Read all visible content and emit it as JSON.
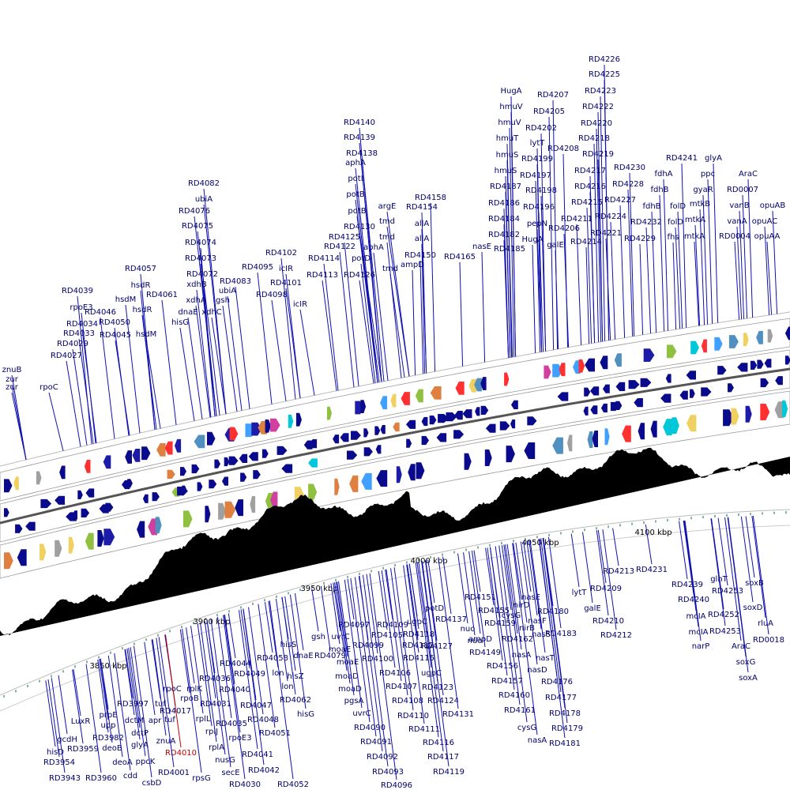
{
  "tick_labels": [
    "3850 kbp",
    "3900 kbp",
    "3950 kbp",
    "4000 kbp",
    "4050 kbp",
    "4100 kbp"
  ],
  "upper_labels": [
    "RD4226",
    "RD4225",
    "RD4223",
    "RD4222",
    "RD4220",
    "RD4218",
    "RD4219",
    "RD4217",
    "RD4216",
    "RD4215",
    "RD4211",
    "RD4214",
    "RD4207",
    "RD4205",
    "RD4202",
    "RD4208",
    "HugA",
    "hmuV",
    "hmuV",
    "hmuT",
    "hmuS",
    "hmuS",
    "RD4187",
    "RD4186",
    "RD4184",
    "RD4182",
    "RD4185",
    "lytT",
    "RD4199",
    "RD4197",
    "RD4198",
    "RD4196",
    "pepN",
    "HugA",
    "galE",
    "RD4206",
    "RD4230",
    "RD4228",
    "RD4227",
    "RD4224",
    "RD4221",
    "RD4232",
    "RD4229",
    "RD4241",
    "fdhA",
    "fdhB",
    "fdhB",
    "folD",
    "folD",
    "fhs",
    "glyA",
    "ppc",
    "gyaR",
    "mtkB",
    "mtkA",
    "mtkA",
    "AraC",
    "RD0007",
    "vanB",
    "vanA",
    "RD0004",
    "opuAB",
    "opuAC",
    "opuAA",
    "nasE",
    "RD4165",
    "RD4158",
    "RD4154",
    "allA",
    "allA",
    "RD4150",
    "ampD",
    "argE",
    "tmd",
    "tmd",
    "aphA",
    "tmd",
    "RD4140",
    "RD4139",
    "RD4138",
    "aphA",
    "potI",
    "potB",
    "potB",
    "RD4130",
    "RD4125",
    "RD4122",
    "potD",
    "RD4126",
    "RD4114",
    "RD4113",
    "RD4102",
    "RD4095",
    "icIR",
    "RD4101",
    "RD4098",
    "icIR",
    "RD4082",
    "ubiA",
    "RD4076",
    "RD4075",
    "RD4074",
    "RD4073",
    "RD4072",
    "xdhB",
    "xdhA",
    "dnaE",
    "hisG",
    "xdhC",
    "RD4083",
    "ubiA",
    "gsh",
    "RD4057",
    "hsdR",
    "hsdM",
    "hsdR",
    "RD4061",
    "RD4046",
    "RD4050",
    "hsdM",
    "RD4045",
    "RD4039",
    "rpoE3",
    "RD4034",
    "RD4033",
    "RD4029",
    "RD4027",
    "znuB",
    "zur",
    "zur",
    "rpoC"
  ],
  "lower_labels": [
    "LuxR",
    "gcdH",
    "hisD",
    "RD3959",
    "RD3954",
    "RD3943",
    "RD3960",
    "RD3982",
    "upp",
    "prpE",
    "deoB",
    "deoA",
    "cdd",
    "csbD",
    "dctM",
    "dctP",
    "glyA",
    "ppcK",
    "RD3997",
    "tuf",
    "apr",
    "tuf",
    "rpoC",
    "rpoB",
    "rplK",
    "RD4017",
    "znuA",
    "RD4010",
    "RD4001",
    "rpsG",
    "RD4036",
    "RD4031",
    "rplL",
    "RD4035",
    "rplJ",
    "rplA",
    "nusG",
    "secE",
    "RD4030",
    "RD4044",
    "RD4040",
    "RD4049",
    "RD4047",
    "rpoE3",
    "RD4048",
    "RD4051",
    "RD4041",
    "RD4042",
    "RD4052",
    "RD4058",
    "hisS",
    "dnaE",
    "lon",
    "hisZ",
    "lon",
    "RD4062",
    "hisG",
    "gsh",
    "RD4079",
    "uvrC",
    "moaE",
    "RD4097",
    "RD4099",
    "moaE",
    "moaD",
    "moaD",
    "pgsA",
    "uvrC",
    "RD4090",
    "RD4091",
    "RD4092",
    "RD4093",
    "RD4096",
    "RD4109",
    "RD4105",
    "RD4100",
    "RD4106",
    "RD4107",
    "RD4108",
    "RD4110",
    "RD4111",
    "RD4116",
    "RD4117",
    "RD4119",
    "ugpC",
    "RD4112",
    "RD4118",
    "RD4115",
    "ugpC",
    "RD4123",
    "RD4124",
    "RD4131",
    "RD4127",
    "potD",
    "RD4137",
    "nuo",
    "nuo",
    "ampD",
    "RD4149",
    "RD4156",
    "RD4157",
    "RD4160",
    "RD4161",
    "cysG",
    "nasA",
    "RD4151",
    "RD4155",
    "RD4159",
    "RD4162",
    "nasA",
    "cysG",
    "nirD",
    "nirB",
    "nasE",
    "nasF",
    "nasS",
    "nasT",
    "nasD",
    "RD4180",
    "RD4183",
    "RD4176",
    "RD4177",
    "RD4178",
    "RD4179",
    "RD4181",
    "lytT",
    "galE",
    "RD4209",
    "RD4213",
    "RD4231",
    "RD4210",
    "RD4212",
    "RD4239",
    "RD4240",
    "mcIA",
    "mcIA",
    "narP",
    "glnT",
    "RD4253",
    "RD4252",
    "RD4253",
    "AraC",
    "soxG",
    "soxA",
    "soxB",
    "soxD",
    "rluA",
    "RD0018"
  ]
}
